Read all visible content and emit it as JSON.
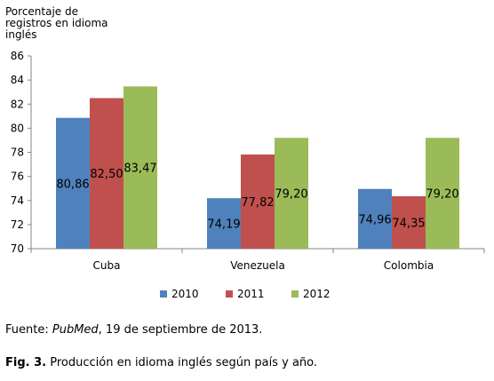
{
  "chart_data": {
    "type": "bar",
    "ylabel": "Porcentaje de registros en idioma inglés",
    "categories": [
      "Cuba",
      "Venezuela",
      "Colombia"
    ],
    "series": [
      {
        "name": "2010",
        "color": "#4f81bd",
        "values": [
          80.86,
          74.19,
          74.96
        ],
        "labels": [
          "80,86",
          "74,19",
          "74,96"
        ]
      },
      {
        "name": "2011",
        "color": "#c0504d",
        "values": [
          82.5,
          77.82,
          74.35
        ],
        "labels": [
          "82,50",
          "77,82",
          "74,35"
        ]
      },
      {
        "name": "2012",
        "color": "#9bbb59",
        "values": [
          83.47,
          79.2,
          79.2
        ],
        "labels": [
          "83,47",
          "79,20",
          "79,20"
        ]
      }
    ],
    "ylim": [
      70,
      86
    ],
    "yticks": [
      70,
      72,
      74,
      76,
      78,
      80,
      82,
      84,
      86
    ],
    "legend_position": "bottom",
    "grid": false
  },
  "source": {
    "prefix": "Fuente: ",
    "italic": "PubMed",
    "suffix": ", 19 de septiembre de 2013."
  },
  "caption": {
    "label": "Fig. 3.",
    "text": " Producción en idioma inglés según país y año."
  }
}
